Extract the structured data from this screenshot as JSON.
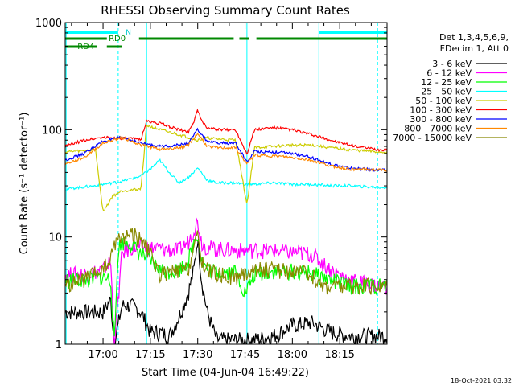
{
  "chart_data": {
    "type": "line",
    "title": "RHESSI Observing Summary Count Rates",
    "xlabel": "Start Time (04-Jun-04 16:49:22)",
    "ylabel": "Count Rate (s⁻¹ detector⁻¹)",
    "yscale": "log",
    "ylim": [
      1,
      1000
    ],
    "xlim_minutes": [
      16.8,
      18.5
    ],
    "x_tick_labels": [
      "17:00",
      "17:15",
      "17:30",
      "17:45",
      "18:00",
      "18:15"
    ],
    "x_tick_values_hours": [
      17.0,
      17.25,
      17.5,
      17.75,
      18.0,
      18.25
    ],
    "y_tick_labels": [
      "1",
      "10",
      "100",
      "1000"
    ],
    "y_tick_values": [
      1,
      10,
      100,
      1000
    ],
    "footer_timestamp": "18-Oct-2021 03:32",
    "legend_header": [
      "Det 1,3,4,5,6,9,",
      "FDecim 1, Att 0"
    ],
    "flag_labels": {
      "n": "N",
      "rd0": "RD0",
      "rd4": "RD4"
    },
    "flags": {
      "N": [
        [
          16.8,
          17.08
        ],
        [
          18.14,
          18.5
        ]
      ],
      "RD0": [
        [
          16.8,
          17.02
        ],
        [
          17.19,
          17.69
        ],
        [
          17.72,
          17.77
        ],
        [
          17.81,
          18.5
        ]
      ],
      "RD4": [
        [
          16.8,
          16.97
        ],
        [
          17.02,
          17.1
        ]
      ]
    },
    "vlines_solid": [
      16.805,
      17.23,
      17.76,
      18.14
    ],
    "vlines_dashed": [
      17.08,
      18.45
    ],
    "series": [
      {
        "name": "3 - 6 keV",
        "color": "#000000",
        "x": [
          16.8,
          16.9,
          17.0,
          17.04,
          17.06,
          17.1,
          17.15,
          17.2,
          17.25,
          17.3,
          17.35,
          17.4,
          17.45,
          17.48,
          17.5,
          17.52,
          17.55,
          17.6,
          17.7,
          17.8,
          17.9,
          18.0,
          18.1,
          18.2,
          18.3,
          18.4,
          18.45
        ],
        "y": [
          2.0,
          2.0,
          2.0,
          2.6,
          1.0,
          2.3,
          2.3,
          2.0,
          1.3,
          1.3,
          1.2,
          1.8,
          3.0,
          5.0,
          10.0,
          4.0,
          2.0,
          1.1,
          1.1,
          1.1,
          1.2,
          1.5,
          1.6,
          1.3,
          1.2,
          1.2,
          1.2
        ]
      },
      {
        "name": "6 - 12 keV",
        "color": "#ff00ff",
        "x": [
          16.8,
          16.9,
          17.0,
          17.04,
          17.06,
          17.1,
          17.15,
          17.2,
          17.25,
          17.3,
          17.4,
          17.45,
          17.48,
          17.5,
          17.52,
          17.55,
          17.6,
          17.7,
          17.8,
          17.9,
          18.0,
          18.1,
          18.2,
          18.3,
          18.45
        ],
        "y": [
          4.5,
          4.5,
          5.0,
          6.0,
          1.0,
          7.0,
          8.0,
          8.0,
          8.0,
          7.8,
          7.5,
          9.0,
          12.0,
          14.0,
          9.0,
          8.0,
          7.8,
          7.5,
          7.6,
          7.5,
          7.2,
          7.0,
          5.0,
          4.0,
          3.5
        ]
      },
      {
        "name": "12 - 25 keV",
        "color": "#00ff00",
        "x": [
          16.8,
          16.9,
          17.0,
          17.04,
          17.06,
          17.08,
          17.1,
          17.15,
          17.2,
          17.25,
          17.3,
          17.35,
          17.4,
          17.45,
          17.48,
          17.5,
          17.52,
          17.55,
          17.6,
          17.7,
          17.75,
          17.8,
          17.9,
          18.0,
          18.1,
          18.2,
          18.3,
          18.45
        ],
        "y": [
          4.0,
          4.0,
          4.2,
          4.0,
          1.0,
          8.0,
          9.0,
          8.5,
          7.0,
          6.0,
          5.0,
          4.8,
          5.0,
          6.0,
          9.0,
          11.0,
          6.0,
          5.0,
          4.8,
          4.8,
          3.0,
          4.5,
          4.8,
          4.8,
          4.6,
          4.0,
          3.5,
          3.5
        ]
      },
      {
        "name": "25 - 50 keV",
        "color": "#00ffff",
        "x": [
          16.8,
          16.95,
          17.05,
          17.1,
          17.15,
          17.2,
          17.25,
          17.3,
          17.35,
          17.4,
          17.45,
          17.5,
          17.55,
          17.6,
          17.7,
          17.75,
          17.8,
          17.9,
          18.0,
          18.1,
          18.2,
          18.3,
          18.45
        ],
        "y": [
          28,
          30,
          32,
          33,
          35,
          37,
          43,
          52,
          40,
          32,
          36,
          44,
          34,
          32,
          32,
          31,
          31,
          32,
          31,
          31,
          30,
          30,
          29
        ]
      },
      {
        "name": "50 - 100 keV",
        "color": "#cccc00",
        "x": [
          16.8,
          16.96,
          17.0,
          17.05,
          17.1,
          17.2,
          17.23,
          17.3,
          17.4,
          17.45,
          17.5,
          17.55,
          17.6,
          17.7,
          17.76,
          17.8,
          17.9,
          18.0,
          18.1,
          18.2,
          18.3,
          18.45
        ],
        "y": [
          62,
          65,
          17,
          24,
          27,
          28,
          110,
          100,
          90,
          85,
          80,
          84,
          82,
          80,
          20,
          68,
          70,
          72,
          72,
          68,
          65,
          62
        ]
      },
      {
        "name": "100 - 300 keV",
        "color": "#ff0000",
        "x": [
          16.8,
          16.9,
          17.0,
          17.1,
          17.2,
          17.23,
          17.3,
          17.4,
          17.45,
          17.48,
          17.5,
          17.52,
          17.55,
          17.6,
          17.7,
          17.76,
          17.8,
          17.9,
          18.0,
          18.1,
          18.2,
          18.3,
          18.45
        ],
        "y": [
          70,
          80,
          85,
          83,
          82,
          120,
          115,
          100,
          95,
          120,
          155,
          120,
          105,
          100,
          100,
          60,
          100,
          105,
          100,
          90,
          80,
          72,
          65
        ]
      },
      {
        "name": "300 - 800 keV",
        "color": "#0000ff",
        "x": [
          16.8,
          16.9,
          17.0,
          17.1,
          17.2,
          17.3,
          17.4,
          17.45,
          17.5,
          17.55,
          17.6,
          17.7,
          17.76,
          17.8,
          17.9,
          18.0,
          18.1,
          18.2,
          18.3,
          18.45
        ],
        "y": [
          52,
          60,
          78,
          85,
          75,
          70,
          72,
          75,
          100,
          78,
          75,
          75,
          50,
          63,
          62,
          60,
          55,
          48,
          44,
          42
        ]
      },
      {
        "name": "800 - 7000 keV",
        "color": "#ff8800",
        "x": [
          16.8,
          16.9,
          17.0,
          17.1,
          17.2,
          17.3,
          17.4,
          17.45,
          17.5,
          17.55,
          17.6,
          17.7,
          17.76,
          17.8,
          17.9,
          18.0,
          18.1,
          18.2,
          18.3,
          18.45
        ],
        "y": [
          48,
          55,
          75,
          85,
          72,
          66,
          68,
          72,
          92,
          70,
          68,
          68,
          48,
          58,
          57,
          55,
          52,
          46,
          43,
          42
        ]
      },
      {
        "name": "7000 - 15000 keV",
        "color": "#888800",
        "x": [
          16.8,
          16.9,
          17.0,
          17.04,
          17.06,
          17.1,
          17.15,
          17.2,
          17.25,
          17.3,
          17.4,
          17.45,
          17.48,
          17.5,
          17.52,
          17.55,
          17.6,
          17.7,
          17.8,
          17.9,
          18.0,
          18.1,
          18.15,
          18.2,
          18.3,
          18.45
        ],
        "y": [
          3.5,
          4.0,
          5.0,
          6.0,
          9.0,
          10.0,
          11.0,
          9.5,
          7.0,
          4.5,
          4.8,
          5.0,
          8.0,
          10.0,
          6.0,
          5.0,
          4.5,
          4.2,
          5.0,
          5.0,
          4.8,
          4.5,
          3.5,
          3.5,
          3.5,
          3.5
        ]
      }
    ]
  }
}
